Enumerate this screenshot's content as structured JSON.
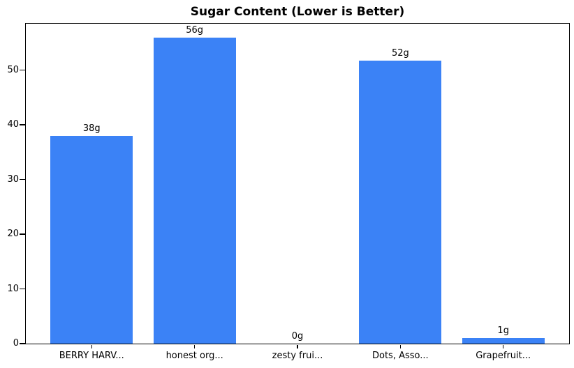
{
  "chart_data": {
    "type": "bar",
    "title": "Sugar Content (Lower is Better)",
    "categories": [
      "BERRY HARV...",
      "honest org...",
      "zesty frui...",
      "Dots, Asso...",
      "Grapefruit..."
    ],
    "values": [
      38,
      56,
      0,
      51.8,
      1
    ],
    "bar_labels": [
      "38g",
      "56g",
      "0g",
      "52g",
      "1g"
    ],
    "yticks": [
      0,
      10,
      20,
      30,
      40,
      50
    ],
    "ylim": [
      0,
      58.5
    ],
    "xlabel": "",
    "ylabel": "",
    "grid": false,
    "legend": false,
    "bar_color": "#3b82f6",
    "text_color": "#000000",
    "background_color": "#ffffff"
  }
}
